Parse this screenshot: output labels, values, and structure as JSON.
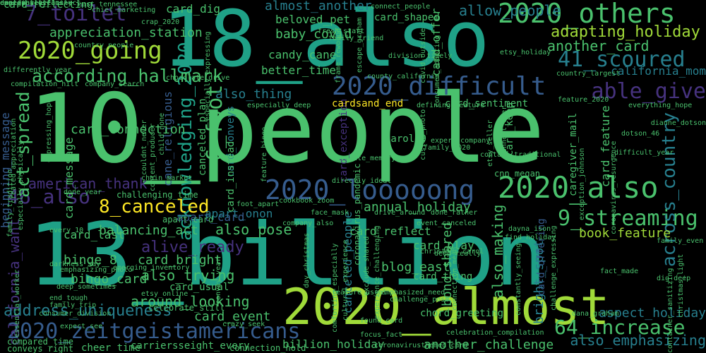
{
  "background": "#000000",
  "palette": {
    "purple": "#440154",
    "indigo": "#46327e",
    "blue": "#365c8d",
    "teal": "#277f8e",
    "green": "#1fa187",
    "lime": "#4ac16d",
    "yellowgreen": "#a0da39",
    "yellow": "#fde725"
  },
  "words": [
    {
      "text": "10_people",
      "color": "#4ac16d"
    },
    {
      "text": "13_billion",
      "color": "#1fa187"
    },
    {
      "text": "18_also",
      "color": "#1fa187"
    },
    {
      "text": "2020_almost",
      "color": "#a0da39"
    },
    {
      "text": "2020_looooong",
      "color": "#365c8d"
    },
    {
      "text": "2020_also",
      "color": "#4ac16d"
    },
    {
      "text": "2020_difficult",
      "color": "#365c8d"
    },
    {
      "text": "2020_others",
      "color": "#4ac16d"
    },
    {
      "text": "2020_going",
      "color": "#a0da39"
    },
    {
      "text": "2020_zeitgeistamericans",
      "color": "#365c8d"
    },
    {
      "text": "6_foot",
      "color": "#4ac16d"
    },
    {
      "text": "acknowledging_2020",
      "color": "#1fa187"
    },
    {
      "text": "9_streaming",
      "color": "#4ac16d"
    },
    {
      "text": "41_scoured",
      "color": "#277f8e"
    },
    {
      "text": "able_give",
      "color": "#46327e"
    },
    {
      "text": "across_country",
      "color": "#277f8e"
    },
    {
      "text": "46_also",
      "color": "#46327e"
    },
    {
      "text": "7_toilet",
      "color": "#46327e"
    },
    {
      "text": "64_increase",
      "color": "#4ac16d"
    },
    {
      "text": "8_canceled",
      "color": "#fde725"
    },
    {
      "text": "according_hallmark",
      "color": "#4ac16d"
    },
    {
      "text": "act_spread",
      "color": "#4ac16d"
    },
    {
      "text": "adapting_holiday",
      "color": "#a0da39"
    },
    {
      "text": "address_uniqueness",
      "color": "#277f8e"
    },
    {
      "text": "allow_people",
      "color": "#277f8e"
    },
    {
      "text": "almost_another",
      "color": "#277f8e"
    },
    {
      "text": "alive_ready",
      "color": "#46327e"
    },
    {
      "text": "also_emphasizing",
      "color": "#277f8e"
    },
    {
      "text": "also_making",
      "color": "#4ac16d"
    },
    {
      "text": "also_pose",
      "color": "#4ac16d"
    },
    {
      "text": "also_thing",
      "color": "#277f8e"
    },
    {
      "text": "also_trying",
      "color": "#4ac16d"
    },
    {
      "text": "american_thank",
      "color": "#46327e"
    },
    {
      "text": "annual_holiday",
      "color": "#4ac16d"
    },
    {
      "text": "another_card",
      "color": "#4ac16d"
    },
    {
      "text": "another_challenge",
      "color": "#4ac16d"
    },
    {
      "text": "apart_card",
      "color": "#365c8d"
    },
    {
      "text": "apart_onon",
      "color": "#277f8e"
    },
    {
      "text": "appreciation_station",
      "color": "#4ac16d"
    },
    {
      "text": "around_looking",
      "color": "#4ac16d"
    },
    {
      "text": "aspect_holiday",
      "color": "#277f8e"
    },
    {
      "text": "baby_covid",
      "color": "#4ac16d"
    },
    {
      "text": "balancing_act",
      "color": "#4ac16d"
    },
    {
      "text": "beginning_message",
      "color": "#365c8d"
    },
    {
      "text": "beloved_pet",
      "color": "#4ac16d"
    },
    {
      "text": "better_time",
      "color": "#4ac16d"
    },
    {
      "text": "billion_holiday",
      "color": "#4ac16d"
    },
    {
      "text": "binge_8",
      "color": "#4ac16d"
    },
    {
      "text": "bingo_card",
      "color": "#4ac16d"
    },
    {
      "text": "blog_east",
      "color": "#4ac16d"
    },
    {
      "text": "bond_shared",
      "color": "#4ac16d"
    },
    {
      "text": "book_feature",
      "color": "#a0da39"
    },
    {
      "text": "bright_spot",
      "color": "#277f8e"
    },
    {
      "text": "california_mom",
      "color": "#277f8e"
    },
    {
      "text": "california_want",
      "color": "#46327e"
    },
    {
      "text": "cane_religious",
      "color": "#365c8d"
    },
    {
      "text": "canceled_people",
      "color": "#277f8e"
    },
    {
      "text": "canceled_plan",
      "color": "#4ac16d"
    },
    {
      "text": "candy_cane",
      "color": "#4ac16d"
    },
    {
      "text": "card_bright",
      "color": "#4ac16d"
    },
    {
      "text": "card_connection",
      "color": "#4ac16d"
    },
    {
      "text": "card_conveys",
      "color": "#277f8e"
    },
    {
      "text": "card_dig",
      "color": "#4ac16d"
    },
    {
      "text": "card_event",
      "color": "#4ac16d"
    },
    {
      "text": "card_exception",
      "color": "#46327e"
    },
    {
      "text": "card_feature",
      "color": "#4ac16d"
    },
    {
      "text": "card_instead",
      "color": "#4ac16d"
    },
    {
      "text": "card_keep",
      "color": "#4ac16d"
    },
    {
      "text": "card_last",
      "color": "#4ac16d"
    },
    {
      "text": "card_message",
      "color": "#4ac16d"
    },
    {
      "text": "card_offer",
      "color": "#4ac16d"
    },
    {
      "text": "card_offering",
      "color": "#365c8d"
    },
    {
      "text": "card_play",
      "color": "#4ac16d"
    },
    {
      "text": "card_reflect",
      "color": "#4ac16d"
    },
    {
      "text": "card_reflecting",
      "color": "#4ac16d"
    },
    {
      "text": "card_sentiment",
      "color": "#4ac16d"
    },
    {
      "text": "card_shaped",
      "color": "#4ac16d"
    },
    {
      "text": "card_thing",
      "color": "#4ac16d"
    },
    {
      "text": "card_usual",
      "color": "#4ac16d"
    },
    {
      "text": "caregiver_mail",
      "color": "#4ac16d"
    },
    {
      "text": "cardsand_end",
      "color": "#fde725"
    },
    {
      "text": "carol_9",
      "color": "#4ac16d"
    },
    {
      "text": "challenging_time",
      "color": "#4ac16d"
    },
    {
      "text": "celebrate_still",
      "color": "#4ac16d"
    },
    {
      "text": "chord_greeting",
      "color": "#4ac16d"
    },
    {
      "text": "cnn_megan",
      "color": "#4ac16d"
    },
    {
      "text": "compared_time",
      "color": "#4ac16d"
    },
    {
      "text": "conveys_right",
      "color": "#4ac16d"
    },
    {
      "text": "cheer_time",
      "color": "#4ac16d"
    },
    {
      "text": "carriersseight_every",
      "color": "#4ac16d"
    },
    {
      "text": "connection_hold",
      "color": "#4ac16d"
    },
    {
      "text": "coronavirusthemed_card",
      "color": "#4ac16d"
    },
    {
      "text": "focus_fact",
      "color": "#4ac16d"
    },
    {
      "text": "found_card",
      "color": "#4ac16d"
    },
    {
      "text": "east_tennessee",
      "color": "#4ac16d"
    },
    {
      "text": "crap_2020",
      "color": "#4ac16d"
    },
    {
      "text": "christmas_carol",
      "color": "#4ac16d"
    },
    {
      "text": "apart_card",
      "color": "#4ac16d"
    },
    {
      "text": "chocolate_drive",
      "color": "#4ac16d"
    },
    {
      "text": "county_california",
      "color": "#4ac16d"
    },
    {
      "text": "family_2020",
      "color": "#4ac16d"
    },
    {
      "text": "difficult_year",
      "color": "#4ac16d"
    },
    {
      "text": "dotson_46",
      "color": "#4ac16d"
    },
    {
      "text": "dianne_dotson",
      "color": "#4ac16d"
    },
    {
      "text": "everything_hope",
      "color": "#4ac16d"
    },
    {
      "text": "coronavirus_pandemic",
      "color": "#4ac16d"
    },
    {
      "text": "celebration_compilation",
      "color": "#4ac16d"
    },
    {
      "text": "christmas_light",
      "color": "#4ac16d"
    },
    {
      "text": "container_sanitizing",
      "color": "#4ac16d"
    },
    {
      "text": "dana_graham",
      "color": "#4ac16d"
    },
    {
      "text": "fact_made",
      "color": "#4ac16d"
    },
    {
      "text": "dig_deep",
      "color": "#4ac16d"
    },
    {
      "text": "family_even",
      "color": "#4ac16d"
    },
    {
      "text": "find_holiday",
      "color": "#4ac16d"
    },
    {
      "text": "deep_really",
      "color": "#4ac16d"
    },
    {
      "text": "every_10",
      "color": "#4ac16d"
    },
    {
      "text": "face_mask",
      "color": "#4ac16d"
    },
    {
      "text": "done_rather",
      "color": "#4ac16d"
    },
    {
      "text": "drive_around",
      "color": "#4ac16d"
    },
    {
      "text": "event_canceled",
      "color": "#4ac16d"
    },
    {
      "text": "company_also",
      "color": "#4ac16d"
    },
    {
      "text": "foot_apart",
      "color": "#4ac16d"
    },
    {
      "text": "cookbook_zoom",
      "color": "#4ac16d"
    },
    {
      "text": "done_year",
      "color": "#4ac16d"
    },
    {
      "text": "chain_market",
      "color": "#4ac16d"
    },
    {
      "text": "darkness_say",
      "color": "#4ac16d"
    },
    {
      "text": "emerging_inventory",
      "color": "#4ac16d"
    },
    {
      "text": "end_tough",
      "color": "#4ac16d"
    },
    {
      "text": "family_trip",
      "color": "#4ac16d"
    },
    {
      "text": "deep_sometimes",
      "color": "#4ac16d"
    },
    {
      "text": "etsy_online",
      "color": "#4ac16d"
    },
    {
      "text": "expect_see",
      "color": "#4ac16d"
    },
    {
      "text": "crazy_seek",
      "color": "#4ac16d"
    },
    {
      "text": "convey_year",
      "color": "#4ac16d"
    },
    {
      "text": "day_christmas",
      "color": "#4ac16d"
    },
    {
      "text": "feature_usual",
      "color": "#4ac16d"
    },
    {
      "text": "emphasized_need",
      "color": "#4ac16d"
    },
    {
      "text": "challenge_pose",
      "color": "#4ac16d"
    },
    {
      "text": "essential_worker",
      "color": "#4ac16d"
    },
    {
      "text": "emphasizing_photo",
      "color": "#4ac16d"
    },
    {
      "text": "connect_people",
      "color": "#4ac16d"
    },
    {
      "text": "fresh_start",
      "color": "#4ac16d"
    },
    {
      "text": "family_friend",
      "color": "#4ac16d"
    },
    {
      "text": "frame_rewound",
      "color": "#4ac16d"
    },
    {
      "text": "escape_graham",
      "color": "#4ac16d"
    },
    {
      "text": "covid_outside",
      "color": "#4ac16d"
    },
    {
      "text": "consumer_adapting",
      "color": "#4ac16d"
    },
    {
      "text": "etsy_holiday",
      "color": "#4ac16d"
    },
    {
      "text": "division_timely",
      "color": "#4ac16d"
    },
    {
      "text": "especially_expressing",
      "color": "#4ac16d"
    },
    {
      "text": "country_people",
      "color": "#4ac16d"
    },
    {
      "text": "differently_year",
      "color": "#4ac16d"
    },
    {
      "text": "compilation_hilt",
      "color": "#4ac16d"
    },
    {
      "text": "country_largest",
      "color": "#4ac16d"
    },
    {
      "text": "feature_2020",
      "color": "#4ac16d"
    },
    {
      "text": "company_search",
      "color": "#4ac16d"
    },
    {
      "text": "especially_deep",
      "color": "#4ac16d"
    },
    {
      "text": "defining_feature",
      "color": "#4ac16d"
    },
    {
      "text": "created_appreciation",
      "color": "#4ac16d"
    },
    {
      "text": "child_none",
      "color": "#4ac16d"
    },
    {
      "text": "content_producer",
      "color": "#4ac16d"
    },
    {
      "text": "couldnt_never",
      "color": "#4ac16d"
    },
    {
      "text": "connect_ever",
      "color": "#4ac16d"
    },
    {
      "text": "feature_bingo",
      "color": "#4ac16d"
    },
    {
      "text": "custom_photo",
      "color": "#4ac16d"
    },
    {
      "text": "expert_company",
      "color": "#4ac16d"
    },
    {
      "text": "contain_traditional",
      "color": "#4ac16d"
    },
    {
      "text": "exception_johnson",
      "color": "#4ac16d"
    },
    {
      "text": "etsy_seller",
      "color": "#4ac16d"
    },
    {
      "text": "dayna_ison",
      "color": "#4ac16d"
    },
    {
      "text": "experience_challenging",
      "color": "#4ac16d"
    },
    {
      "text": "challenge_expressing",
      "color": "#4ac16d"
    },
    {
      "text": "favorite_memory",
      "color": "#4ac16d"
    },
    {
      "text": "directly_ideal",
      "color": "#4ac16d"
    },
    {
      "text": "comforting_especially",
      "color": "#4ac16d"
    },
    {
      "text": "cultural_experience",
      "color": "#4ac16d"
    },
    {
      "text": "exclude_shared",
      "color": "#4ac16d"
    },
    {
      "text": "connection_mean",
      "color": "#4ac16d"
    },
    {
      "text": "constantly_seeing",
      "color": "#4ac16d"
    },
    {
      "text": "coronavirus_resurgence",
      "color": "#4ac16d"
    },
    {
      "text": "especially_physically",
      "color": "#4ac16d"
    },
    {
      "text": "consumer_division",
      "color": "#4ac16d"
    },
    {
      "text": "chief_marketing",
      "color": "#4ac16d"
    },
    {
      "text": "expressing_hope",
      "color": "#4ac16d"
    },
    {
      "text": "family_tradition",
      "color": "#4ac16d"
    },
    {
      "text": "emotionally_connect",
      "color": "#4ac16d"
    },
    {
      "text": "design_scale",
      "color": "#4ac16d"
    },
    {
      "text": "comedy_year",
      "color": "#4ac16d"
    },
    {
      "text": "especially_family",
      "color": "#4ac16d"
    }
  ]
}
